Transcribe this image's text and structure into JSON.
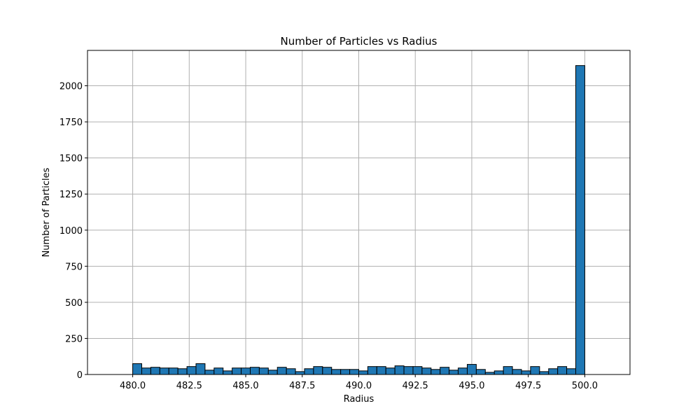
{
  "chart_data": {
    "type": "bar",
    "title": "Number of Particles vs Radius",
    "xlabel": "Radius",
    "ylabel": "Number of Particles",
    "xlim": [
      478.0,
      502.0
    ],
    "ylim": [
      0,
      2245
    ],
    "grid": true,
    "bar_color": "#1f77b4",
    "edge_color": "#000000",
    "bin_width": 0.4,
    "bin_edges_start": 480.0,
    "values": [
      75,
      45,
      50,
      45,
      45,
      40,
      55,
      75,
      30,
      45,
      25,
      45,
      45,
      50,
      45,
      30,
      50,
      40,
      20,
      40,
      55,
      50,
      35,
      35,
      35,
      25,
      55,
      55,
      45,
      60,
      55,
      55,
      45,
      35,
      50,
      30,
      45,
      70,
      35,
      15,
      25,
      55,
      35,
      25,
      55,
      20,
      40,
      55,
      40,
      2140
    ],
    "xticks": [
      480.0,
      482.5,
      485.0,
      487.5,
      490.0,
      492.5,
      495.0,
      497.5,
      500.0
    ],
    "xtick_labels": [
      "480.0",
      "482.5",
      "485.0",
      "487.5",
      "490.0",
      "492.5",
      "495.0",
      "497.5",
      "500.0"
    ],
    "yticks": [
      0,
      250,
      500,
      750,
      1000,
      1250,
      1500,
      1750,
      2000
    ],
    "ytick_labels": [
      "0",
      "250",
      "500",
      "750",
      "1000",
      "1250",
      "1500",
      "1750",
      "2000"
    ]
  }
}
